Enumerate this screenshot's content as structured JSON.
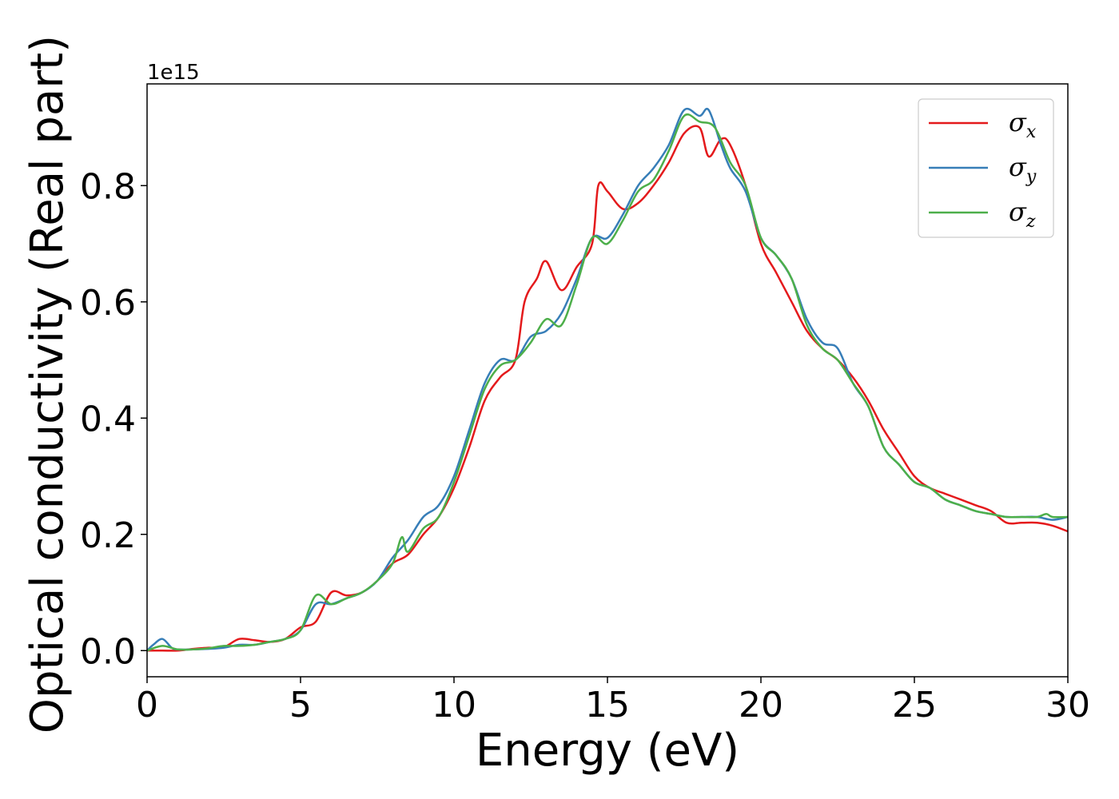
{
  "chart_data": {
    "type": "line",
    "title": "",
    "xlabel": "Energy (eV)",
    "ylabel": "Optical conductivity (Real part)",
    "y_offset_label": "1e15",
    "xlim": [
      0,
      30
    ],
    "ylim": [
      -0.045,
      0.975
    ],
    "xticks": [
      0,
      5,
      10,
      15,
      20,
      25,
      30
    ],
    "xtick_labels": [
      "0",
      "5",
      "10",
      "15",
      "20",
      "25",
      "30"
    ],
    "yticks": [
      0.0,
      0.2,
      0.4,
      0.6,
      0.8
    ],
    "ytick_labels": [
      "0.0",
      "0.2",
      "0.4",
      "0.6",
      "0.8"
    ],
    "grid": false,
    "legend_position": "top-right",
    "series": [
      {
        "name": "σx",
        "symbol": "σ",
        "subscript": "x",
        "color": "#e41a1c",
        "points": [
          [
            0,
            0.0
          ],
          [
            0.5,
            0.0
          ],
          [
            1,
            0.0
          ],
          [
            1.5,
            0.003
          ],
          [
            2,
            0.005
          ],
          [
            2.5,
            0.006
          ],
          [
            3,
            0.02
          ],
          [
            3.5,
            0.018
          ],
          [
            4,
            0.015
          ],
          [
            4.5,
            0.02
          ],
          [
            5,
            0.04
          ],
          [
            5.5,
            0.05
          ],
          [
            6,
            0.1
          ],
          [
            6.5,
            0.095
          ],
          [
            7,
            0.1
          ],
          [
            7.5,
            0.12
          ],
          [
            8,
            0.15
          ],
          [
            8.5,
            0.165
          ],
          [
            9,
            0.2
          ],
          [
            9.5,
            0.23
          ],
          [
            10,
            0.28
          ],
          [
            10.5,
            0.35
          ],
          [
            11,
            0.43
          ],
          [
            11.5,
            0.47
          ],
          [
            12,
            0.5
          ],
          [
            12.3,
            0.6
          ],
          [
            12.7,
            0.64
          ],
          [
            13,
            0.67
          ],
          [
            13.5,
            0.62
          ],
          [
            14,
            0.66
          ],
          [
            14.5,
            0.7
          ],
          [
            14.7,
            0.8
          ],
          [
            15,
            0.79
          ],
          [
            15.5,
            0.76
          ],
          [
            16,
            0.77
          ],
          [
            16.5,
            0.8
          ],
          [
            17,
            0.84
          ],
          [
            17.5,
            0.89
          ],
          [
            18,
            0.9
          ],
          [
            18.3,
            0.85
          ],
          [
            18.7,
            0.88
          ],
          [
            19,
            0.87
          ],
          [
            19.5,
            0.8
          ],
          [
            20,
            0.7
          ],
          [
            20.5,
            0.65
          ],
          [
            21,
            0.6
          ],
          [
            21.5,
            0.55
          ],
          [
            22,
            0.52
          ],
          [
            22.5,
            0.5
          ],
          [
            23,
            0.47
          ],
          [
            23.5,
            0.43
          ],
          [
            24,
            0.38
          ],
          [
            24.5,
            0.34
          ],
          [
            25,
            0.3
          ],
          [
            25.5,
            0.28
          ],
          [
            26,
            0.27
          ],
          [
            26.5,
            0.26
          ],
          [
            27,
            0.25
          ],
          [
            27.5,
            0.24
          ],
          [
            28,
            0.22
          ],
          [
            28.5,
            0.22
          ],
          [
            29,
            0.22
          ],
          [
            29.5,
            0.215
          ],
          [
            30,
            0.205
          ]
        ]
      },
      {
        "name": "σy",
        "symbol": "σ",
        "subscript": "y",
        "color": "#377eb8",
        "points": [
          [
            0,
            0.0
          ],
          [
            0.2,
            0.01
          ],
          [
            0.5,
            0.02
          ],
          [
            0.8,
            0.005
          ],
          [
            1,
            0.002
          ],
          [
            1.5,
            0.002
          ],
          [
            2,
            0.003
          ],
          [
            2.5,
            0.005
          ],
          [
            3,
            0.01
          ],
          [
            3.5,
            0.01
          ],
          [
            4,
            0.015
          ],
          [
            4.5,
            0.02
          ],
          [
            5,
            0.035
          ],
          [
            5.5,
            0.08
          ],
          [
            6,
            0.08
          ],
          [
            6.5,
            0.09
          ],
          [
            7,
            0.1
          ],
          [
            7.5,
            0.12
          ],
          [
            8,
            0.16
          ],
          [
            8.5,
            0.19
          ],
          [
            9,
            0.23
          ],
          [
            9.5,
            0.25
          ],
          [
            10,
            0.3
          ],
          [
            10.5,
            0.38
          ],
          [
            11,
            0.46
          ],
          [
            11.5,
            0.5
          ],
          [
            12,
            0.5
          ],
          [
            12.5,
            0.54
          ],
          [
            13,
            0.55
          ],
          [
            13.5,
            0.58
          ],
          [
            14,
            0.64
          ],
          [
            14.5,
            0.71
          ],
          [
            15,
            0.71
          ],
          [
            15.5,
            0.75
          ],
          [
            16,
            0.8
          ],
          [
            16.5,
            0.83
          ],
          [
            17,
            0.87
          ],
          [
            17.5,
            0.93
          ],
          [
            18,
            0.92
          ],
          [
            18.3,
            0.93
          ],
          [
            18.7,
            0.87
          ],
          [
            19,
            0.83
          ],
          [
            19.5,
            0.79
          ],
          [
            20,
            0.71
          ],
          [
            20.5,
            0.68
          ],
          [
            21,
            0.64
          ],
          [
            21.5,
            0.57
          ],
          [
            22,
            0.53
          ],
          [
            22.5,
            0.52
          ],
          [
            23,
            0.46
          ],
          [
            23.5,
            0.42
          ],
          [
            24,
            0.35
          ],
          [
            24.5,
            0.32
          ],
          [
            25,
            0.29
          ],
          [
            25.5,
            0.28
          ],
          [
            26,
            0.26
          ],
          [
            26.5,
            0.25
          ],
          [
            27,
            0.24
          ],
          [
            27.5,
            0.235
          ],
          [
            28,
            0.23
          ],
          [
            28.5,
            0.23
          ],
          [
            29,
            0.23
          ],
          [
            29.5,
            0.225
          ],
          [
            30,
            0.23
          ]
        ]
      },
      {
        "name": "σz",
        "symbol": "σ",
        "subscript": "z",
        "color": "#4daf4a",
        "points": [
          [
            0,
            0.0
          ],
          [
            0.5,
            0.008
          ],
          [
            1,
            0.002
          ],
          [
            1.5,
            0.002
          ],
          [
            2,
            0.004
          ],
          [
            2.5,
            0.008
          ],
          [
            3,
            0.008
          ],
          [
            3.5,
            0.01
          ],
          [
            4,
            0.015
          ],
          [
            4.5,
            0.02
          ],
          [
            5,
            0.035
          ],
          [
            5.5,
            0.095
          ],
          [
            6,
            0.08
          ],
          [
            6.5,
            0.09
          ],
          [
            7,
            0.1
          ],
          [
            7.5,
            0.12
          ],
          [
            8,
            0.15
          ],
          [
            8.3,
            0.195
          ],
          [
            8.5,
            0.17
          ],
          [
            9,
            0.21
          ],
          [
            9.5,
            0.23
          ],
          [
            10,
            0.29
          ],
          [
            10.5,
            0.37
          ],
          [
            11,
            0.45
          ],
          [
            11.5,
            0.49
          ],
          [
            12,
            0.5
          ],
          [
            12.5,
            0.53
          ],
          [
            13,
            0.57
          ],
          [
            13.5,
            0.56
          ],
          [
            14,
            0.63
          ],
          [
            14.5,
            0.71
          ],
          [
            15,
            0.7
          ],
          [
            15.5,
            0.74
          ],
          [
            16,
            0.79
          ],
          [
            16.5,
            0.81
          ],
          [
            17,
            0.86
          ],
          [
            17.5,
            0.92
          ],
          [
            18,
            0.91
          ],
          [
            18.5,
            0.9
          ],
          [
            19,
            0.84
          ],
          [
            19.5,
            0.8
          ],
          [
            20,
            0.71
          ],
          [
            20.5,
            0.68
          ],
          [
            21,
            0.64
          ],
          [
            21.5,
            0.56
          ],
          [
            22,
            0.52
          ],
          [
            22.5,
            0.5
          ],
          [
            23,
            0.46
          ],
          [
            23.5,
            0.42
          ],
          [
            24,
            0.35
          ],
          [
            24.5,
            0.32
          ],
          [
            25,
            0.29
          ],
          [
            25.5,
            0.28
          ],
          [
            26,
            0.26
          ],
          [
            26.5,
            0.25
          ],
          [
            27,
            0.24
          ],
          [
            27.5,
            0.235
          ],
          [
            28,
            0.23
          ],
          [
            28.5,
            0.23
          ],
          [
            29,
            0.23
          ],
          [
            29.3,
            0.235
          ],
          [
            29.5,
            0.23
          ],
          [
            30,
            0.23
          ]
        ]
      }
    ]
  }
}
